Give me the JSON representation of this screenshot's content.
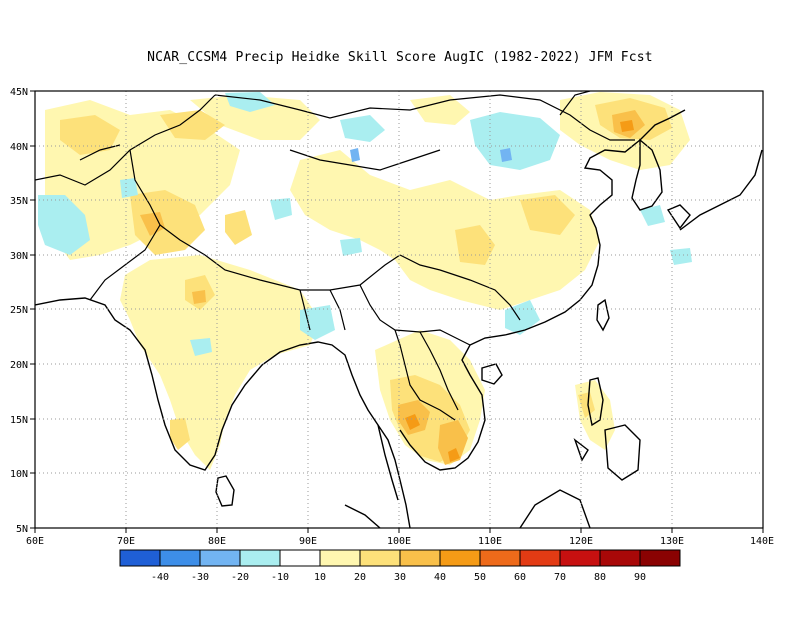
{
  "title": "NCAR_CCSM4 Precip Heidke Skill Score AugIC (1982-2022) JFM Fcst",
  "map": {
    "lon_range": [
      60,
      140
    ],
    "lat_range": [
      5,
      45
    ],
    "lon_ticks": [
      "60E",
      "70E",
      "80E",
      "90E",
      "100E",
      "110E",
      "120E",
      "130E",
      "140E"
    ],
    "lat_ticks": [
      "45N",
      "40N",
      "35N",
      "30N",
      "25N",
      "20N",
      "15N",
      "10N",
      "5N"
    ],
    "grid": "dotted"
  },
  "colorbar": {
    "colors": [
      "#1f5fd6",
      "#3d8ee8",
      "#72b4f2",
      "#aaeef0",
      "#ffffff",
      "#fff7b0",
      "#fde17a",
      "#f9c04a",
      "#f59b16",
      "#ee6a1a",
      "#e33b14",
      "#c71010",
      "#a80808",
      "#8a0202"
    ],
    "labels": [
      "-40",
      "-30",
      "-20",
      "-10",
      "10",
      "20",
      "30",
      "40",
      "50",
      "60",
      "70",
      "80",
      "90"
    ]
  },
  "skill_regions": [
    {
      "name": "indochina-thailand",
      "class": 30,
      "color": "#fde17a"
    },
    {
      "name": "cambodia-vietnam-south",
      "class": 40,
      "color": "#f9c04a"
    },
    {
      "name": "northeast-china",
      "class": 30,
      "color": "#fde17a"
    },
    {
      "name": "south-china-east",
      "class": 20,
      "color": "#fff7b0"
    },
    {
      "name": "tibet-south-china",
      "class": 20,
      "color": "#fff7b0"
    },
    {
      "name": "afghanistan-pakistan",
      "class": 30,
      "color": "#fde17a"
    },
    {
      "name": "india",
      "class": 20,
      "color": "#fff7b0"
    },
    {
      "name": "philippines",
      "class": 20,
      "color": "#fff7b0"
    },
    {
      "name": "mongolia-north-china",
      "class": -10,
      "color": "#aaeef0"
    },
    {
      "name": "iran-east",
      "class": -10,
      "color": "#aaeef0"
    }
  ]
}
